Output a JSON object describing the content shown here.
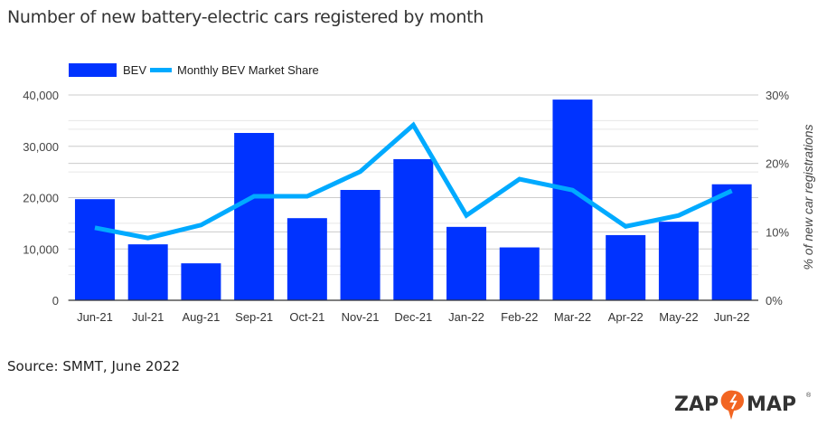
{
  "title": "Number of new battery-electric cars registered by month",
  "source": "Source: SMMT, June 2022",
  "logo_text": "ZAP MAP",
  "chart_data": {
    "type": "bar+line",
    "categories": [
      "Jun-21",
      "Jul-21",
      "Aug-21",
      "Sep-21",
      "Oct-21",
      "Nov-21",
      "Dec-21",
      "Jan-22",
      "Feb-22",
      "Mar-22",
      "Apr-22",
      "May-22",
      "Jun-22"
    ],
    "series": [
      {
        "name": "BEV",
        "type": "bar",
        "axis": "left",
        "color": "#0033ff",
        "values": [
          19700,
          10900,
          7200,
          32600,
          16000,
          21500,
          27500,
          14300,
          10300,
          39100,
          12700,
          15300,
          22600
        ]
      },
      {
        "name": "Monthly BEV Market Share",
        "type": "line",
        "axis": "right",
        "color": "#00aaff",
        "values": [
          10.6,
          9.1,
          11.0,
          15.2,
          15.2,
          18.8,
          25.6,
          12.4,
          17.7,
          16.1,
          10.8,
          12.4,
          16.0
        ]
      }
    ],
    "y_left": {
      "range": [
        0,
        40000
      ],
      "ticks": [
        "0",
        "10,000",
        "20,000",
        "30,000",
        "40,000"
      ],
      "label": ""
    },
    "y_right": {
      "range": [
        0,
        30
      ],
      "ticks": [
        "0%",
        "10%",
        "20%",
        "30%"
      ],
      "label": "% of new car registrations"
    },
    "legend": "top-left",
    "grid": true
  }
}
